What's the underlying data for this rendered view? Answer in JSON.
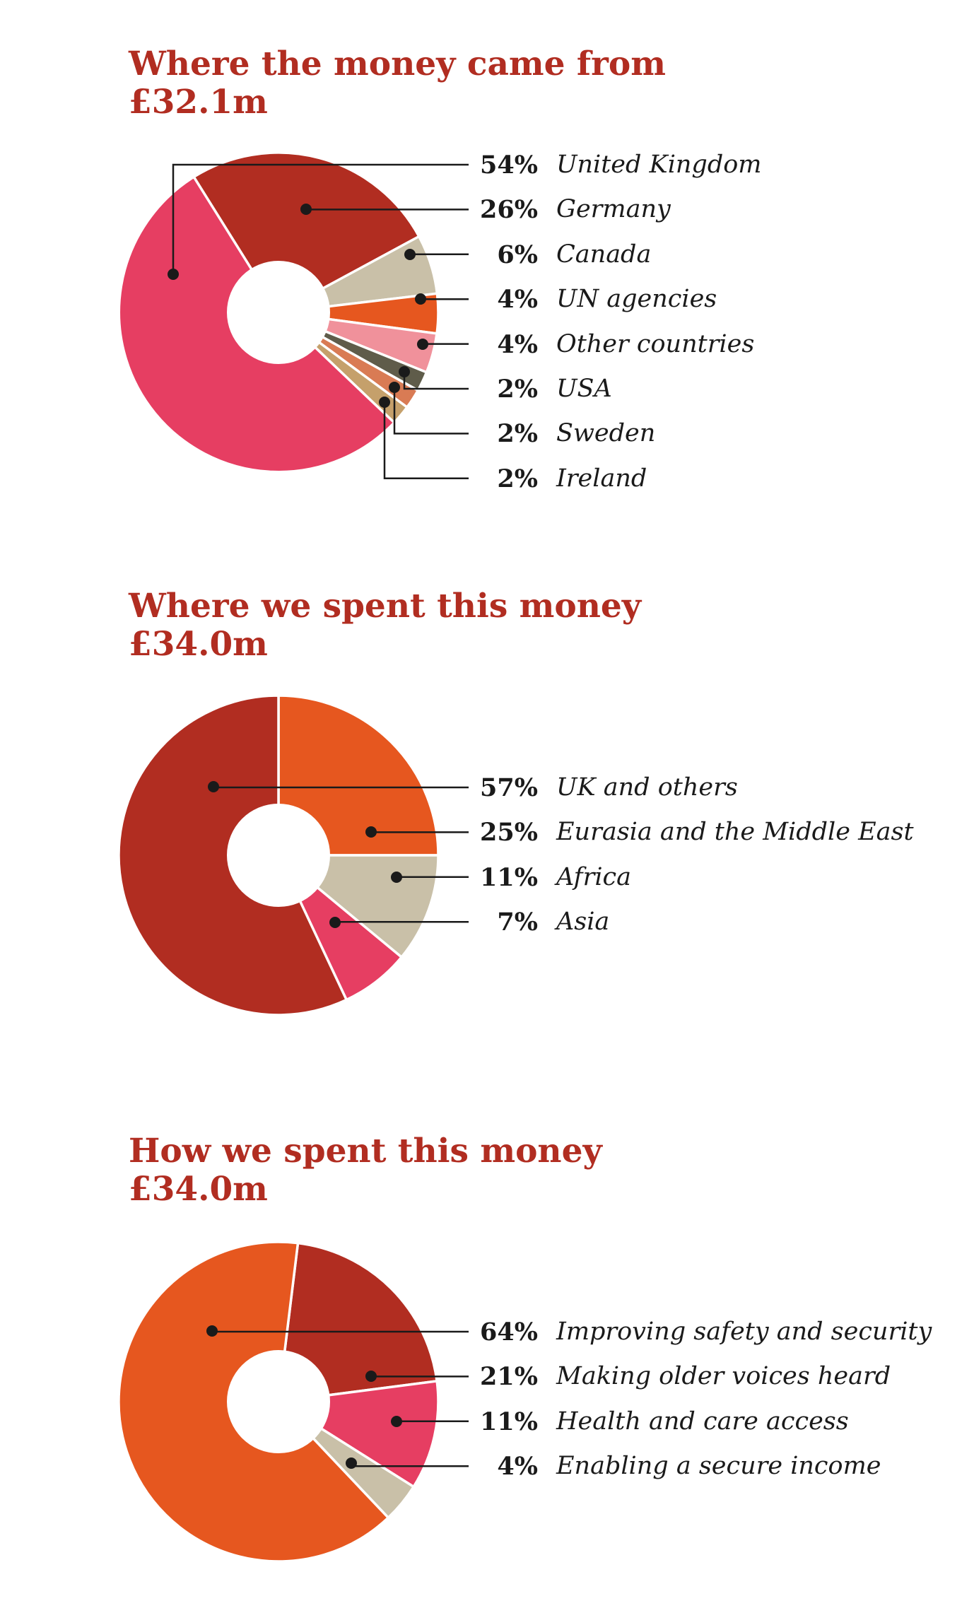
{
  "style": {
    "background": "#ffffff",
    "title_color": "#b12d21",
    "text_color": "#1a1a1a",
    "leader_line_color": "#1a1a1a"
  },
  "chart_data": [
    {
      "type": "pie",
      "variant": "donut",
      "title": "Where the money came from",
      "total_label": "£32.1m",
      "value_unit": "%",
      "legend_position": "right",
      "slices": [
        {
          "label": "United Kingdom",
          "value": 54,
          "color": "#e63e62"
        },
        {
          "label": "Germany",
          "value": 26,
          "color": "#b12d21"
        },
        {
          "label": "Canada",
          "value": 6,
          "color": "#c9c0a8"
        },
        {
          "label": "UN agencies",
          "value": 4,
          "color": "#e6571f"
        },
        {
          "label": "Other countries",
          "value": 4,
          "color": "#f0919b"
        },
        {
          "label": "USA",
          "value": 2,
          "color": "#5f5c4a"
        },
        {
          "label": "Sweden",
          "value": 2,
          "color": "#d97b54"
        },
        {
          "label": "Ireland",
          "value": 2,
          "color": "#c5a06b"
        }
      ]
    },
    {
      "type": "pie",
      "variant": "donut",
      "title": "Where we spent this money",
      "total_label": "£34.0m",
      "value_unit": "%",
      "legend_position": "right",
      "slices": [
        {
          "label": "UK and others",
          "value": 57,
          "color": "#b12d21"
        },
        {
          "label": "Eurasia and the Middle East",
          "value": 25,
          "color": "#e6571f"
        },
        {
          "label": "Africa",
          "value": 11,
          "color": "#c9c0a8"
        },
        {
          "label": "Asia",
          "value": 7,
          "color": "#e63e62"
        }
      ]
    },
    {
      "type": "pie",
      "variant": "donut",
      "title": "How we spent this money",
      "total_label": "£34.0m",
      "value_unit": "%",
      "legend_position": "right",
      "slices": [
        {
          "label": "Improving safety and security",
          "value": 64,
          "color": "#e6571f"
        },
        {
          "label": "Making older voices heard",
          "value": 21,
          "color": "#b12d21"
        },
        {
          "label": "Health and care access",
          "value": 11,
          "color": "#e63e62"
        },
        {
          "label": "Enabling a secure income",
          "value": 4,
          "color": "#c9c0a8"
        }
      ]
    }
  ]
}
